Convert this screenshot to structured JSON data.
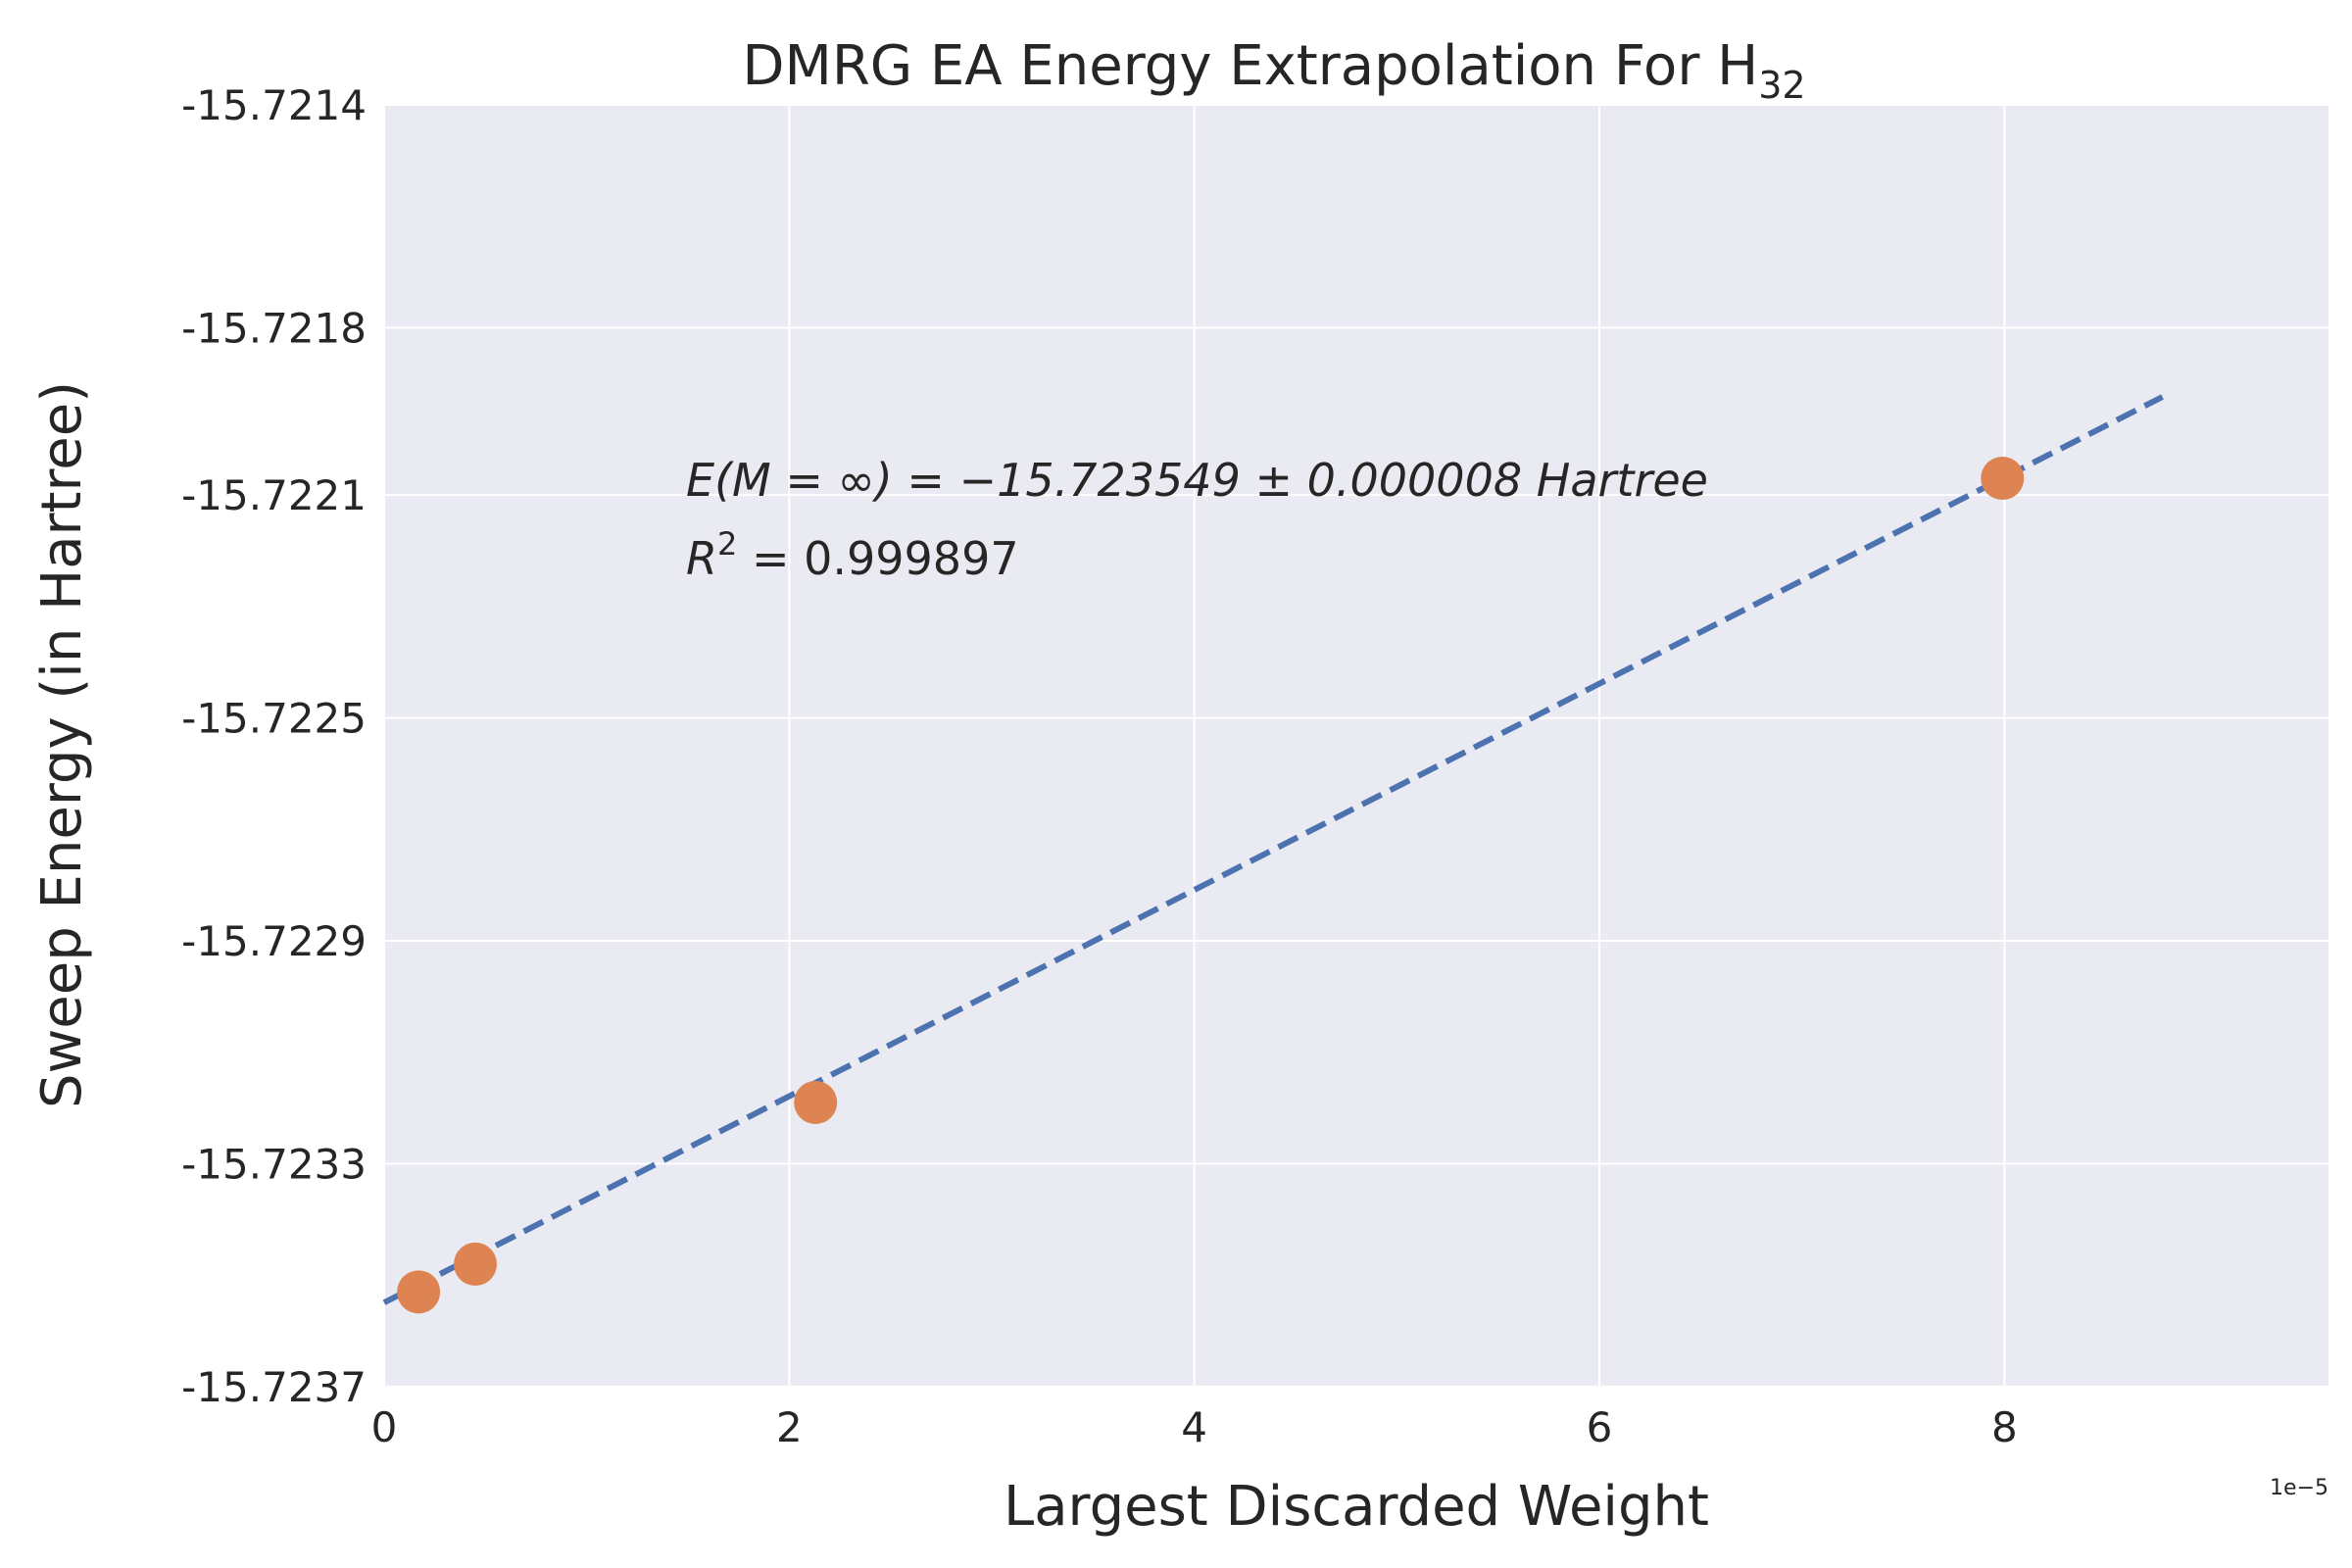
{
  "chart_data": {
    "type": "scatter",
    "title": "DMRG EA Energy Extrapolation For H",
    "title_subscript": "32",
    "xlabel": "Largest Discarded Weight",
    "ylabel": "Sweep Energy (in Hartree)",
    "x_offset_label": "1e−5",
    "xlim": [
      0,
      9.6
    ],
    "ylim": [
      -15.7237,
      -15.7214
    ],
    "xticks": [
      0,
      2,
      4,
      6,
      8
    ],
    "xtick_labels": [
      "0",
      "2",
      "4",
      "6",
      "8"
    ],
    "yticks": [
      -15.7214,
      -15.7218,
      -15.7221,
      -15.7225,
      -15.7229,
      -15.7233,
      -15.7237
    ],
    "ytick_labels": [
      "-15.7214",
      "-15.7218",
      "-15.7221",
      "-15.7225",
      "-15.7229",
      "-15.7233",
      "-15.7237"
    ],
    "grid": true,
    "background": "#eaeaf2",
    "points": {
      "color": "#dd8452",
      "x": [
        0.17,
        0.45,
        2.13,
        7.99
      ],
      "y": [
        -15.72353,
        -15.72348,
        -15.72319,
        -15.72207
      ]
    },
    "fit_line": {
      "color": "#4c72b0",
      "style": "dashed",
      "x": [
        0,
        8.78
      ],
      "y": [
        -15.723549,
        -15.721924
      ]
    },
    "annotation": {
      "line1": "E(M = ∞) = −15.723549 ± 0.000008 Hartree",
      "line2_prefix": "R",
      "line2_sup": "2",
      "line2_suffix": " = 0.999897"
    }
  }
}
